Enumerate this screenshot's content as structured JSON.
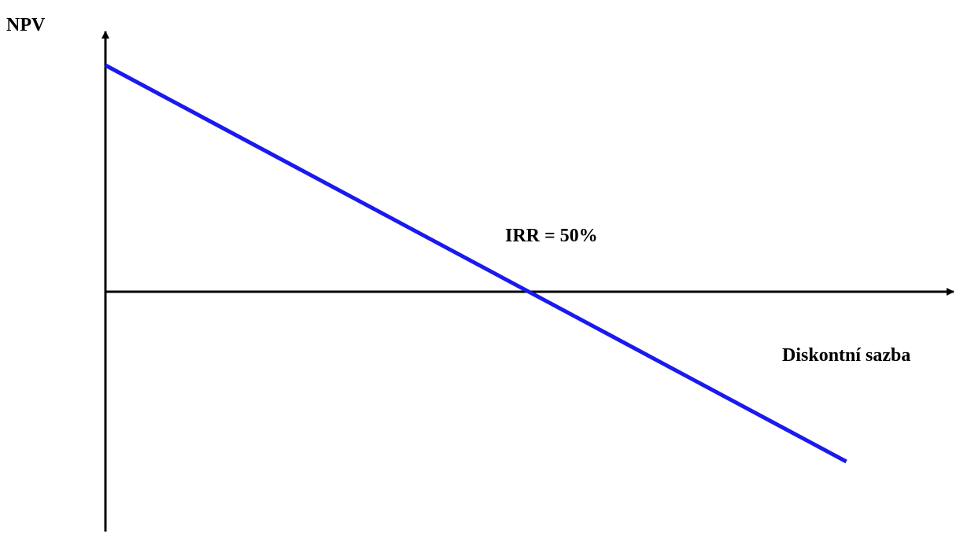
{
  "chart_data": {
    "type": "line",
    "ylabel": "NPV",
    "xlabel": "Diskontní sazba",
    "annotation": "IRR = 50%",
    "irr_percent": 50,
    "series": [
      {
        "x": [
          0,
          88
        ],
        "y": [
          1,
          -0.75
        ]
      }
    ],
    "xlim": [
      0,
      100
    ],
    "ylim": [
      -1.35,
      1.2
    ],
    "grid": false,
    "legend": "none",
    "colors": {
      "line": "#1a1aee",
      "axis": "#000000"
    }
  }
}
